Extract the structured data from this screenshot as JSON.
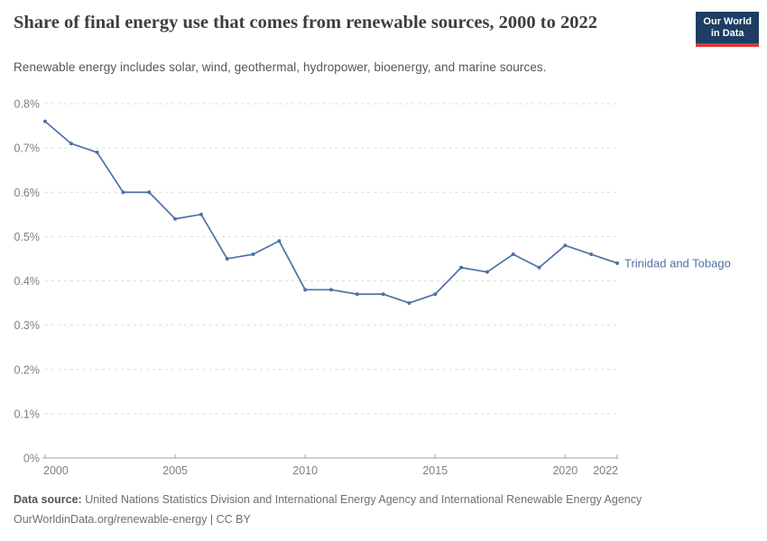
{
  "header": {
    "title": "Share of final energy use that comes from renewable sources, 2000 to 2022",
    "subtitle": "Renewable energy includes solar, wind, geothermal, hydropower, bioenergy, and marine sources.",
    "logo": {
      "line1": "Our World",
      "line2": "in Data"
    }
  },
  "colors": {
    "series_blue": "#4e71a8",
    "logo_bg": "#1d3d63",
    "logo_accent": "#d8383b",
    "grid": "#dcdcdc",
    "axis": "#a3a3a3",
    "tick_text": "#7e7e87"
  },
  "chart_data": {
    "type": "line",
    "title": "Share of final energy use that comes from renewable sources, 2000 to 2022",
    "xlabel": "",
    "ylabel": "",
    "unit": "%",
    "grid": true,
    "legend_position": "end-of-line",
    "x": [
      2000,
      2001,
      2002,
      2003,
      2004,
      2005,
      2006,
      2007,
      2008,
      2009,
      2010,
      2011,
      2012,
      2013,
      2014,
      2015,
      2016,
      2017,
      2018,
      2019,
      2020,
      2021,
      2022
    ],
    "series": [
      {
        "name": "Trinidad and Tobago",
        "color": "#4e71a8",
        "values": [
          0.76,
          0.71,
          0.69,
          0.6,
          0.6,
          0.54,
          0.55,
          0.45,
          0.46,
          0.49,
          0.38,
          0.38,
          0.37,
          0.37,
          0.35,
          0.37,
          0.43,
          0.42,
          0.46,
          0.43,
          0.48,
          0.46,
          0.44
        ]
      }
    ],
    "xticks": [
      2000,
      2005,
      2010,
      2015,
      2020,
      2022
    ],
    "yticks": [
      0,
      0.1,
      0.2,
      0.3,
      0.4,
      0.5,
      0.6,
      0.7,
      0.8
    ],
    "xlim": [
      2000,
      2022
    ],
    "ylim": [
      0,
      0.8
    ]
  },
  "footer": {
    "source_label": "Data source:",
    "source_text": "United Nations Statistics Division and International Energy Agency and International Renewable Energy Agency",
    "license_line": "OurWorldinData.org/renewable-energy | CC BY"
  }
}
